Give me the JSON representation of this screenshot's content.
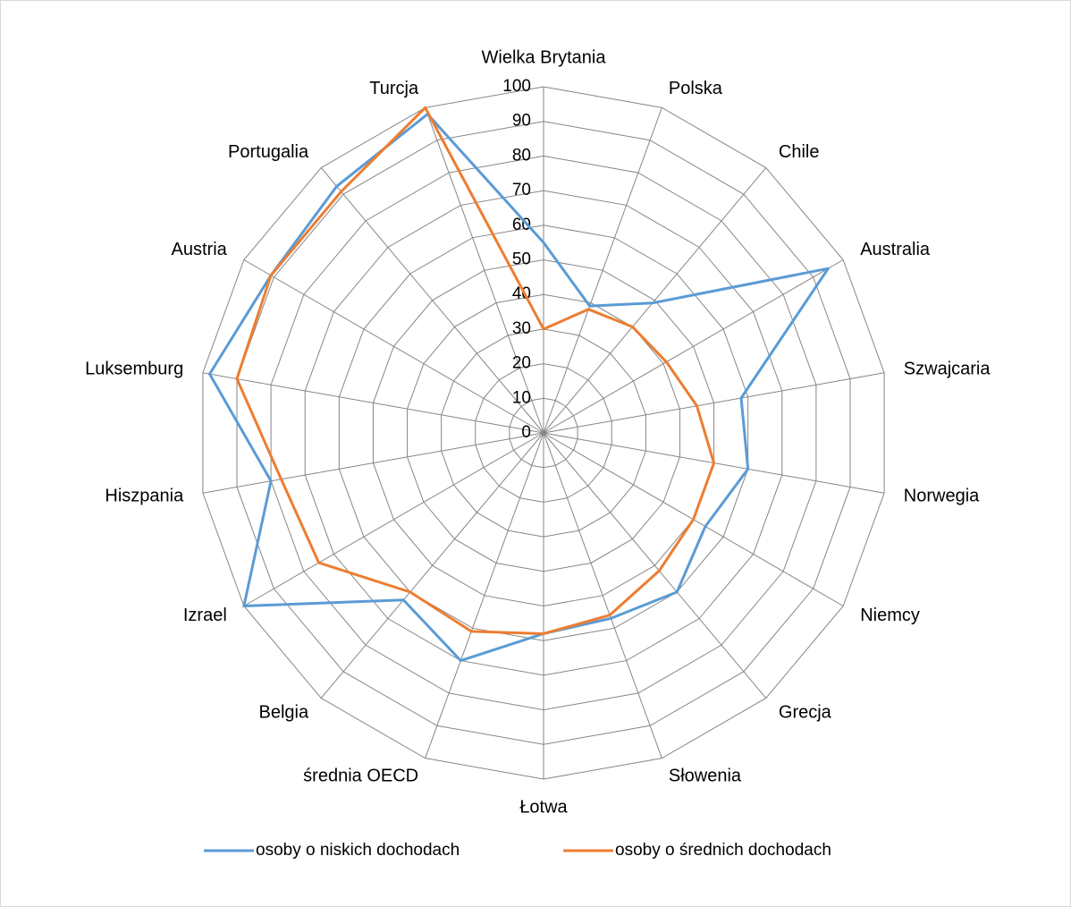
{
  "chart_data": {
    "type": "radar",
    "categories": [
      "Wielka Brytania",
      "Polska",
      "Chile",
      "Australia",
      "Szwajcaria",
      "Norwegia",
      "Niemcy",
      "Grecja",
      "Słowenia",
      "Łotwa",
      "średnia OECD",
      "Belgia",
      "Izrael",
      "Hiszpania",
      "Luksemburg",
      "Austria",
      "Portugalia",
      "Turcja"
    ],
    "series": [
      {
        "name": "osoby o niskich dochodach",
        "color": "#5b9bd5",
        "values": [
          55,
          39,
          49,
          95,
          58,
          60,
          54,
          60,
          57,
          58,
          70,
          63,
          100,
          80,
          98,
          91,
          93,
          98
        ]
      },
      {
        "name": "osoby o średnich dochodach",
        "color": "#ed7d31",
        "values": [
          30,
          38,
          40,
          41,
          45,
          50,
          50,
          52,
          56,
          58,
          61,
          60,
          75,
          77,
          90,
          91,
          91,
          100
        ]
      }
    ],
    "ylim": [
      0,
      100
    ],
    "yticks": [
      0,
      10,
      20,
      30,
      40,
      50,
      60,
      70,
      80,
      90,
      100
    ],
    "grid": true,
    "legend": "bottom"
  }
}
